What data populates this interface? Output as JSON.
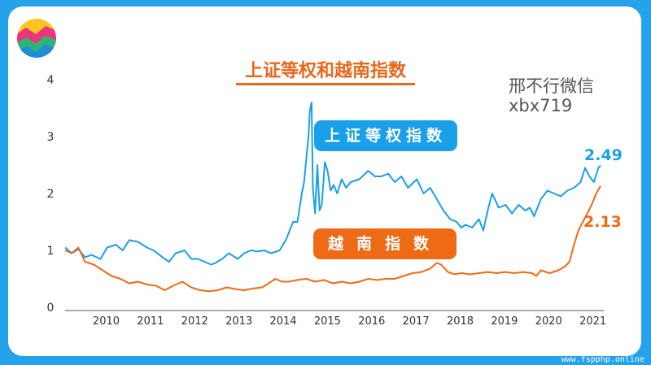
{
  "title": "上证等权和越南指数",
  "watermark": {
    "line1": "邢不行微信",
    "line2": "xbx719"
  },
  "footer": "www.fspphp.online",
  "colors": {
    "background": "#24a3ea",
    "shanghai": "#1aa0e8",
    "vietnam": "#ee6a14",
    "title": "#e8671c"
  },
  "chart_data": {
    "type": "line",
    "title": "上证等权和越南指数",
    "xlabel": "",
    "ylabel": "",
    "xlim": [
      2009.55,
      2021.65
    ],
    "ylim": [
      0,
      4
    ],
    "yticks": [
      0,
      1,
      2,
      3,
      4
    ],
    "xticks": [
      2010,
      2011,
      2012,
      2013,
      2014,
      2015,
      2016,
      2017,
      2018,
      2019,
      2020,
      2021
    ],
    "grid": false,
    "legend": "none",
    "series": [
      {
        "name": "上证等权指数",
        "end_label": "2.49",
        "color": "#1aa0e8",
        "x": [
          2009.55,
          2009.7,
          2009.85,
          2010.0,
          2010.15,
          2010.35,
          2010.5,
          2010.7,
          2010.85,
          2011.0,
          2011.2,
          2011.4,
          2011.55,
          2011.75,
          2011.9,
          2012.05,
          2012.25,
          2012.4,
          2012.55,
          2012.7,
          2012.85,
          2012.95,
          2013.1,
          2013.25,
          2013.45,
          2013.6,
          2013.75,
          2013.9,
          2014.05,
          2014.2,
          2014.4,
          2014.55,
          2014.7,
          2014.8,
          2014.9,
          2014.95,
          2015.0,
          2015.05,
          2015.08,
          2015.12,
          2015.15,
          2015.2,
          2015.25,
          2015.3,
          2015.35,
          2015.42,
          2015.48,
          2015.55,
          2015.62,
          2015.7,
          2015.8,
          2015.9,
          2016.0,
          2016.2,
          2016.4,
          2016.55,
          2016.7,
          2016.85,
          2017.0,
          2017.15,
          2017.3,
          2017.5,
          2017.65,
          2017.8,
          2017.95,
          2018.1,
          2018.25,
          2018.4,
          2018.5,
          2018.6,
          2018.75,
          2018.9,
          2019.0,
          2019.1,
          2019.2,
          2019.35,
          2019.5,
          2019.65,
          2019.8,
          2019.95,
          2020.05,
          2020.15,
          2020.3,
          2020.45,
          2020.6,
          2020.75,
          2020.9,
          2021.05,
          2021.2,
          2021.3,
          2021.4,
          2021.5,
          2021.6,
          2021.65
        ],
        "y": [
          1.05,
          0.95,
          1.02,
          0.88,
          0.92,
          0.85,
          1.05,
          1.1,
          1.0,
          1.18,
          1.15,
          1.05,
          1.0,
          0.88,
          0.8,
          0.95,
          1.0,
          0.85,
          0.85,
          0.8,
          0.75,
          0.78,
          0.85,
          0.95,
          0.85,
          0.95,
          1.0,
          0.98,
          1.0,
          0.95,
          1.0,
          1.2,
          1.5,
          1.5,
          2.0,
          2.2,
          2.6,
          3.0,
          3.45,
          3.6,
          2.1,
          1.65,
          2.5,
          1.7,
          1.8,
          2.55,
          2.4,
          2.05,
          2.15,
          2.0,
          2.25,
          2.1,
          2.2,
          2.25,
          2.4,
          2.3,
          2.3,
          2.35,
          2.2,
          2.3,
          2.1,
          2.25,
          2.0,
          2.1,
          1.9,
          1.7,
          1.55,
          1.5,
          1.4,
          1.45,
          1.4,
          1.55,
          1.35,
          1.7,
          2.0,
          1.75,
          1.8,
          1.65,
          1.8,
          1.7,
          1.75,
          1.6,
          1.9,
          2.05,
          2.0,
          1.95,
          2.05,
          2.1,
          2.2,
          2.45,
          2.3,
          2.2,
          2.45,
          2.49
        ]
      },
      {
        "name": "越南指数",
        "end_label": "2.13",
        "color": "#ee6a14",
        "x": [
          2009.55,
          2009.7,
          2009.85,
          2010.0,
          2010.2,
          2010.4,
          2010.6,
          2010.8,
          2011.0,
          2011.2,
          2011.4,
          2011.6,
          2011.8,
          2012.0,
          2012.2,
          2012.4,
          2012.6,
          2012.8,
          2013.0,
          2013.2,
          2013.4,
          2013.6,
          2013.8,
          2014.0,
          2014.15,
          2014.3,
          2014.45,
          2014.6,
          2014.8,
          2015.0,
          2015.2,
          2015.4,
          2015.6,
          2015.8,
          2016.0,
          2016.2,
          2016.4,
          2016.6,
          2016.8,
          2017.0,
          2017.2,
          2017.4,
          2017.6,
          2017.8,
          2017.95,
          2018.05,
          2018.2,
          2018.35,
          2018.5,
          2018.7,
          2018.9,
          2019.1,
          2019.3,
          2019.5,
          2019.7,
          2019.9,
          2020.1,
          2020.2,
          2020.3,
          2020.5,
          2020.7,
          2020.85,
          2020.95,
          2021.05,
          2021.15,
          2021.25,
          2021.35,
          2021.45,
          2021.55,
          2021.65
        ],
        "y": [
          1.0,
          0.95,
          1.05,
          0.8,
          0.75,
          0.65,
          0.55,
          0.5,
          0.42,
          0.45,
          0.4,
          0.38,
          0.3,
          0.38,
          0.45,
          0.35,
          0.3,
          0.28,
          0.3,
          0.35,
          0.32,
          0.3,
          0.33,
          0.35,
          0.42,
          0.5,
          0.45,
          0.45,
          0.48,
          0.5,
          0.45,
          0.48,
          0.42,
          0.45,
          0.42,
          0.45,
          0.5,
          0.48,
          0.5,
          0.5,
          0.55,
          0.6,
          0.62,
          0.68,
          0.78,
          0.75,
          0.62,
          0.58,
          0.6,
          0.58,
          0.6,
          0.62,
          0.6,
          0.62,
          0.6,
          0.62,
          0.6,
          0.55,
          0.65,
          0.6,
          0.65,
          0.72,
          0.8,
          1.1,
          1.35,
          1.5,
          1.65,
          1.8,
          2.0,
          2.13
        ]
      }
    ]
  }
}
